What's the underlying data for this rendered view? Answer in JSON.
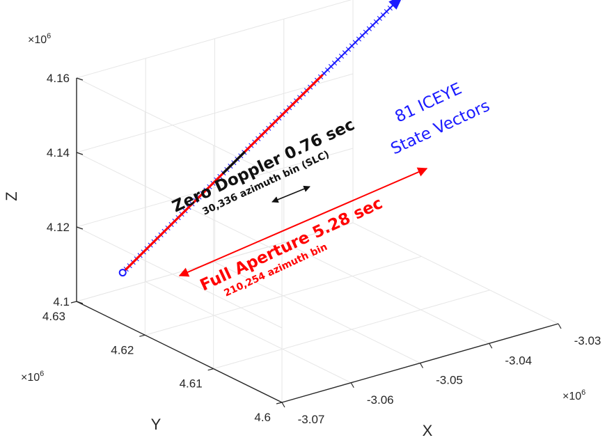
{
  "chart_data": {
    "type": "line3d",
    "title": "",
    "xlabel": "X",
    "ylabel": "Y",
    "zlabel": "Z",
    "x_ticks": [
      "-3.07",
      "-3.06",
      "-3.05",
      "-3.04",
      "-3.03"
    ],
    "y_ticks": [
      "4.6",
      "4.61",
      "4.62",
      "4.63"
    ],
    "z_ticks": [
      "4.1",
      "4.12",
      "4.14",
      "4.16"
    ],
    "x_exponent": "×10",
    "y_exponent": "×10",
    "z_exponent": "×10",
    "exponent_power": "6",
    "xlim": [
      -3.07,
      -3.03
    ],
    "ylim": [
      4.6,
      4.63
    ],
    "zlim": [
      4.1,
      4.16
    ],
    "grid": true,
    "series": [
      {
        "name": "81 ICEYE State Vectors",
        "color": "#1a1aff",
        "marker": "x",
        "count": 81,
        "start": {
          "x": -3.0663,
          "y": 4.627,
          "z": 4.1085
        },
        "end": {
          "x": -3.0255,
          "y": 4.6276,
          "z": 4.1602
        }
      },
      {
        "name": "Full Aperture",
        "color": "#ff0000",
        "start_fraction": 0.0,
        "end_fraction": 0.72
      },
      {
        "name": "Zero Doppler",
        "color": "#111111",
        "start_fraction": 0.36,
        "end_fraction": 0.44
      }
    ],
    "annotations": {
      "zero_doppler_title": "Zero Doppler 0.76 sec",
      "zero_doppler_sub": "30,336 azimuth bin (SLC)",
      "full_aperture_title": "Full Aperture 5.28 sec",
      "full_aperture_sub": "210,254 azimuth bin",
      "state_vectors_line1": "81 ICEYE",
      "state_vectors_line2": "State Vectors"
    },
    "colors": {
      "axis": "#262626",
      "grid": "#e6e6e6",
      "blue": "#1a1aff",
      "red": "#ff0000",
      "black": "#111111"
    }
  }
}
